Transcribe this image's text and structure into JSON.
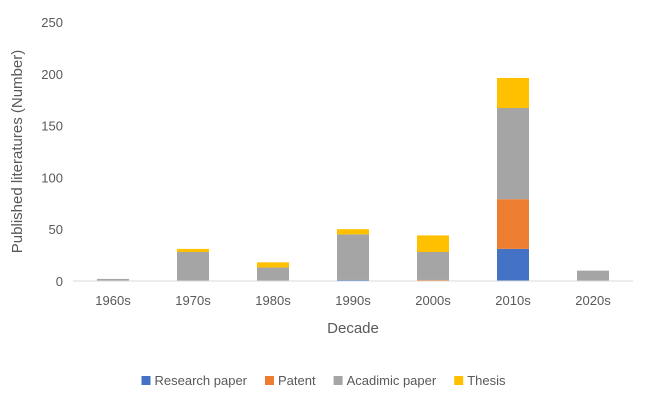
{
  "chart_data": {
    "type": "bar",
    "stacked": true,
    "categories": [
      "1960s",
      "1970s",
      "1980s",
      "1990s",
      "2000s",
      "2010s",
      "2020s"
    ],
    "series": [
      {
        "name": "Research paper",
        "color": "#4472C4",
        "values": [
          0,
          0,
          0,
          1,
          0,
          31,
          0
        ]
      },
      {
        "name": "Patent",
        "color": "#ED7D31",
        "values": [
          0,
          0,
          0,
          0,
          1,
          48,
          0
        ]
      },
      {
        "name": "Acadimic paper",
        "color": "#A5A5A5",
        "values": [
          2,
          28,
          13,
          44,
          27,
          88,
          10
        ]
      },
      {
        "name": "Thesis",
        "color": "#FFC000",
        "values": [
          0,
          3,
          5,
          5,
          16,
          29,
          0
        ]
      }
    ],
    "xlabel": "Decade",
    "ylabel": "Published literatures (Number)",
    "ylim": [
      0,
      250
    ],
    "yticks": [
      0,
      50,
      100,
      150,
      200,
      250
    ],
    "grid": false,
    "legend_position": "bottom"
  }
}
